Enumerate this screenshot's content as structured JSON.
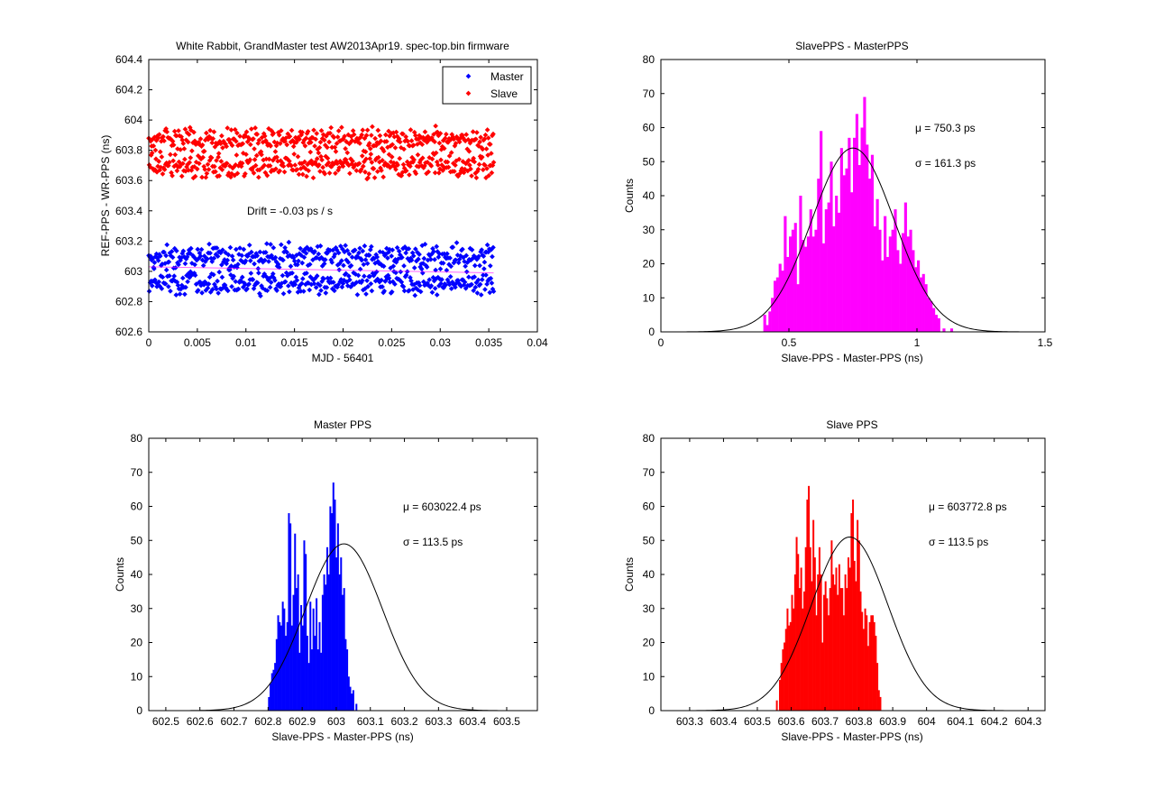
{
  "chart_data": [
    {
      "type": "scatter",
      "title": "White Rabbit, GrandMaster test AW2013Apr19. spec-top.bin firmware",
      "xlabel": "MJD - 56401",
      "ylabel": "REF-PPS - WR-PPS (ns)",
      "xlim": [
        0,
        0.04
      ],
      "ylim": [
        602.6,
        604.4
      ],
      "xticks": [
        0,
        0.005,
        0.01,
        0.015,
        0.02,
        0.025,
        0.03,
        0.035,
        0.04
      ],
      "yticks": [
        602.6,
        602.8,
        603,
        603.2,
        603.4,
        603.6,
        603.8,
        604,
        604.2,
        604.4
      ],
      "legend_position": "top-right",
      "annotation": "Drift = -0.03 ps / s",
      "series": [
        {
          "name": "Master",
          "color": "#0000ff",
          "x_range": [
            0,
            0.0355
          ],
          "y_levels": [
            603.1,
            602.93
          ],
          "y_spread": 0.06
        },
        {
          "name": "Slave",
          "color": "#ff0000",
          "x_range": [
            0,
            0.0355
          ],
          "y_levels": [
            603.87,
            603.7
          ],
          "y_spread": 0.06
        }
      ],
      "trend_color": "#ff00ff"
    },
    {
      "type": "bar",
      "subtype": "histogram",
      "title": "SlavePPS - MasterPPS",
      "xlabel": "Slave-PPS - Master-PPS (ns)",
      "ylabel": "Counts",
      "xlim": [
        0,
        1.5
      ],
      "ylim": [
        0,
        80
      ],
      "xticks": [
        0,
        0.5,
        1,
        1.5
      ],
      "yticks": [
        0,
        10,
        20,
        30,
        40,
        50,
        60,
        70,
        80
      ],
      "color": "#ff00ff",
      "bin_start": 0.4,
      "bin_width": 0.01,
      "counts": [
        5,
        2,
        6,
        10,
        15,
        16,
        20,
        18,
        34,
        22,
        28,
        30,
        32,
        14,
        40,
        27,
        25,
        28,
        36,
        28,
        30,
        45,
        59,
        26,
        36,
        38,
        50,
        31,
        40,
        35,
        54,
        46,
        48,
        57,
        41,
        57,
        64,
        49,
        60,
        69,
        55,
        45,
        52,
        31,
        39,
        30,
        21,
        34,
        22,
        28,
        30,
        36,
        24,
        20,
        29,
        38,
        28,
        30,
        24,
        19,
        21,
        16,
        17,
        14,
        10,
        9,
        7,
        5,
        4,
        0,
        1,
        0,
        0,
        1
      ],
      "fit": {
        "mean": 0.7503,
        "sigma": 0.1613,
        "peak": 54
      },
      "annotations": [
        "μ = 750.3 ps",
        "σ = 161.3 ps"
      ]
    },
    {
      "type": "bar",
      "subtype": "histogram",
      "title": "Master PPS",
      "xlabel": "Slave-PPS - Master-PPS (ns)",
      "ylabel": "Counts",
      "xlim": [
        602.45,
        603.59
      ],
      "ylim": [
        0,
        80
      ],
      "xticks": [
        602.5,
        602.6,
        602.7,
        602.8,
        602.9,
        603,
        603.1,
        603.2,
        603.3,
        603.4,
        603.5
      ],
      "yticks": [
        0,
        10,
        20,
        30,
        40,
        50,
        60,
        70,
        80
      ],
      "color": "#0000ff",
      "bin_start": 602.8,
      "bin_width": 0.0045,
      "counts": [
        4,
        8,
        11,
        12,
        14,
        21,
        28,
        26,
        25,
        32,
        30,
        22,
        26,
        58,
        55,
        25,
        34,
        52,
        36,
        40,
        17,
        31,
        25,
        50,
        46,
        22,
        14,
        32,
        18,
        30,
        22,
        33,
        18,
        26,
        17,
        34,
        40,
        37,
        48,
        40,
        60,
        58,
        67,
        62,
        45,
        55,
        40,
        45,
        34,
        36,
        21,
        18,
        10,
        7,
        5,
        6,
        0,
        2
      ],
      "fit": {
        "mean": 603.0224,
        "sigma": 0.1135,
        "peak": 49
      },
      "annotations": [
        "μ = 603022.4 ps",
        "σ = 113.5 ps"
      ]
    },
    {
      "type": "bar",
      "subtype": "histogram",
      "title": "Slave PPS",
      "xlabel": "Slave-PPS - Master-PPS (ns)",
      "ylabel": "Counts",
      "xlim": [
        603.215,
        604.35
      ],
      "ylim": [
        0,
        80
      ],
      "xticks": [
        603.3,
        603.4,
        603.5,
        603.6,
        603.7,
        603.8,
        603.9,
        604,
        604.1,
        604.2,
        604.3
      ],
      "yticks": [
        0,
        10,
        20,
        30,
        40,
        50,
        60,
        70,
        80
      ],
      "color": "#ff0000",
      "bin_start": 603.555,
      "bin_width": 0.0045,
      "counts": [
        3,
        0,
        9,
        14,
        18,
        20,
        24,
        30,
        25,
        26,
        34,
        30,
        40,
        51,
        46,
        36,
        42,
        30,
        35,
        48,
        62,
        66,
        48,
        38,
        56,
        45,
        28,
        40,
        48,
        40,
        20,
        34,
        38,
        33,
        28,
        36,
        50,
        40,
        37,
        42,
        34,
        43,
        36,
        36,
        28,
        40,
        36,
        45,
        42,
        58,
        62,
        44,
        38,
        56,
        50,
        35,
        29,
        24,
        30,
        28,
        19,
        26,
        28,
        28,
        26,
        22,
        14,
        6,
        4
      ],
      "fit": {
        "mean": 603.7728,
        "sigma": 0.1135,
        "peak": 51
      },
      "annotations": [
        "μ = 603772.8 ps",
        "σ = 113.5 ps"
      ]
    }
  ]
}
